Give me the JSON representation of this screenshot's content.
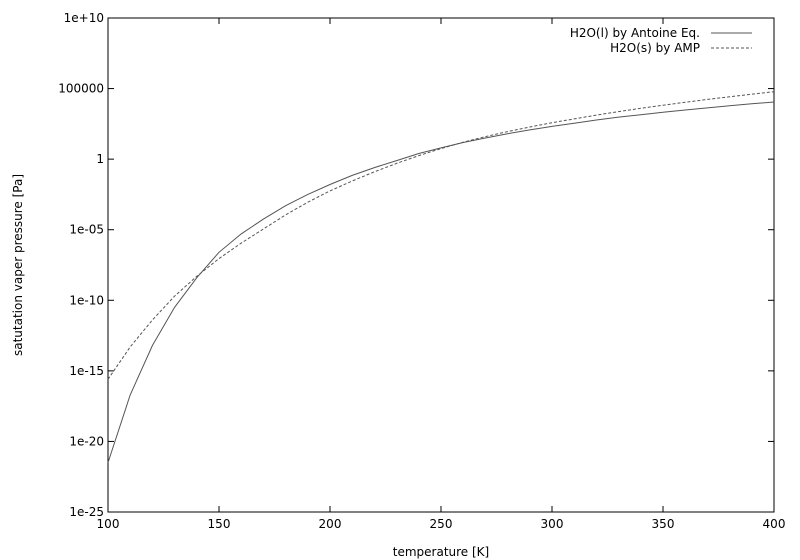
{
  "chart_data": {
    "type": "line",
    "xlabel": "temperature [K]",
    "ylabel": "satutation vaper pressure [Pa]",
    "xlim": [
      100,
      400
    ],
    "ylim_log10": [
      -25,
      10
    ],
    "y_scale": "log",
    "grid": false,
    "legend_position": "top-right",
    "x_ticks": [
      {
        "value": 100,
        "label": "100"
      },
      {
        "value": 150,
        "label": "150"
      },
      {
        "value": 200,
        "label": "200"
      },
      {
        "value": 250,
        "label": "250"
      },
      {
        "value": 300,
        "label": "300"
      },
      {
        "value": 350,
        "label": "350"
      },
      {
        "value": 400,
        "label": "400"
      }
    ],
    "y_ticks": [
      {
        "value_log10": 10,
        "label": "1e+10"
      },
      {
        "value_log10": 5,
        "label": "100000"
      },
      {
        "value_log10": 0,
        "label": "1"
      },
      {
        "value_log10": -5,
        "label": "1e-05"
      },
      {
        "value_log10": -10,
        "label": "1e-10"
      },
      {
        "value_log10": -15,
        "label": "1e-15"
      },
      {
        "value_log10": -20,
        "label": "1e-20"
      },
      {
        "value_log10": -25,
        "label": "1e-25"
      }
    ],
    "series": [
      {
        "name": "H2O(l) by Antoine Eq.",
        "style": "solid",
        "color": "#555555",
        "x": [
          100,
          110,
          120,
          130,
          140,
          150,
          160,
          170,
          180,
          190,
          200,
          210,
          220,
          230,
          240,
          250,
          260,
          270,
          280,
          290,
          300,
          310,
          320,
          330,
          340,
          350,
          360,
          370,
          380,
          390,
          400
        ],
        "log10_y": [
          -21.5,
          -16.7,
          -13.2,
          -10.5,
          -8.4,
          -6.6,
          -5.3,
          -4.25,
          -3.3,
          -2.5,
          -1.8,
          -1.15,
          -0.6,
          -0.1,
          0.4,
          0.8,
          1.18,
          1.5,
          1.8,
          2.07,
          2.32,
          2.55,
          2.77,
          2.98,
          3.15,
          3.32,
          3.48,
          3.63,
          3.78,
          3.92,
          4.05
        ]
      },
      {
        "name": "H2O(s) by AMP",
        "style": "dashed",
        "color": "#555555",
        "x": [
          100,
          110,
          120,
          130,
          140,
          150,
          160,
          170,
          180,
          190,
          200,
          210,
          220,
          230,
          240,
          250,
          260,
          270,
          280,
          290,
          300,
          310,
          320,
          330,
          340,
          350,
          360,
          370,
          380,
          390,
          400
        ],
        "log10_y": [
          -15.6,
          -13.3,
          -11.4,
          -9.7,
          -8.3,
          -7.05,
          -5.95,
          -4.95,
          -3.95,
          -3.05,
          -2.25,
          -1.55,
          -0.9,
          -0.3,
          0.25,
          0.75,
          1.2,
          1.6,
          1.95,
          2.28,
          2.58,
          2.85,
          3.12,
          3.37,
          3.6,
          3.82,
          4.03,
          4.23,
          4.42,
          4.6,
          4.78
        ]
      }
    ]
  }
}
